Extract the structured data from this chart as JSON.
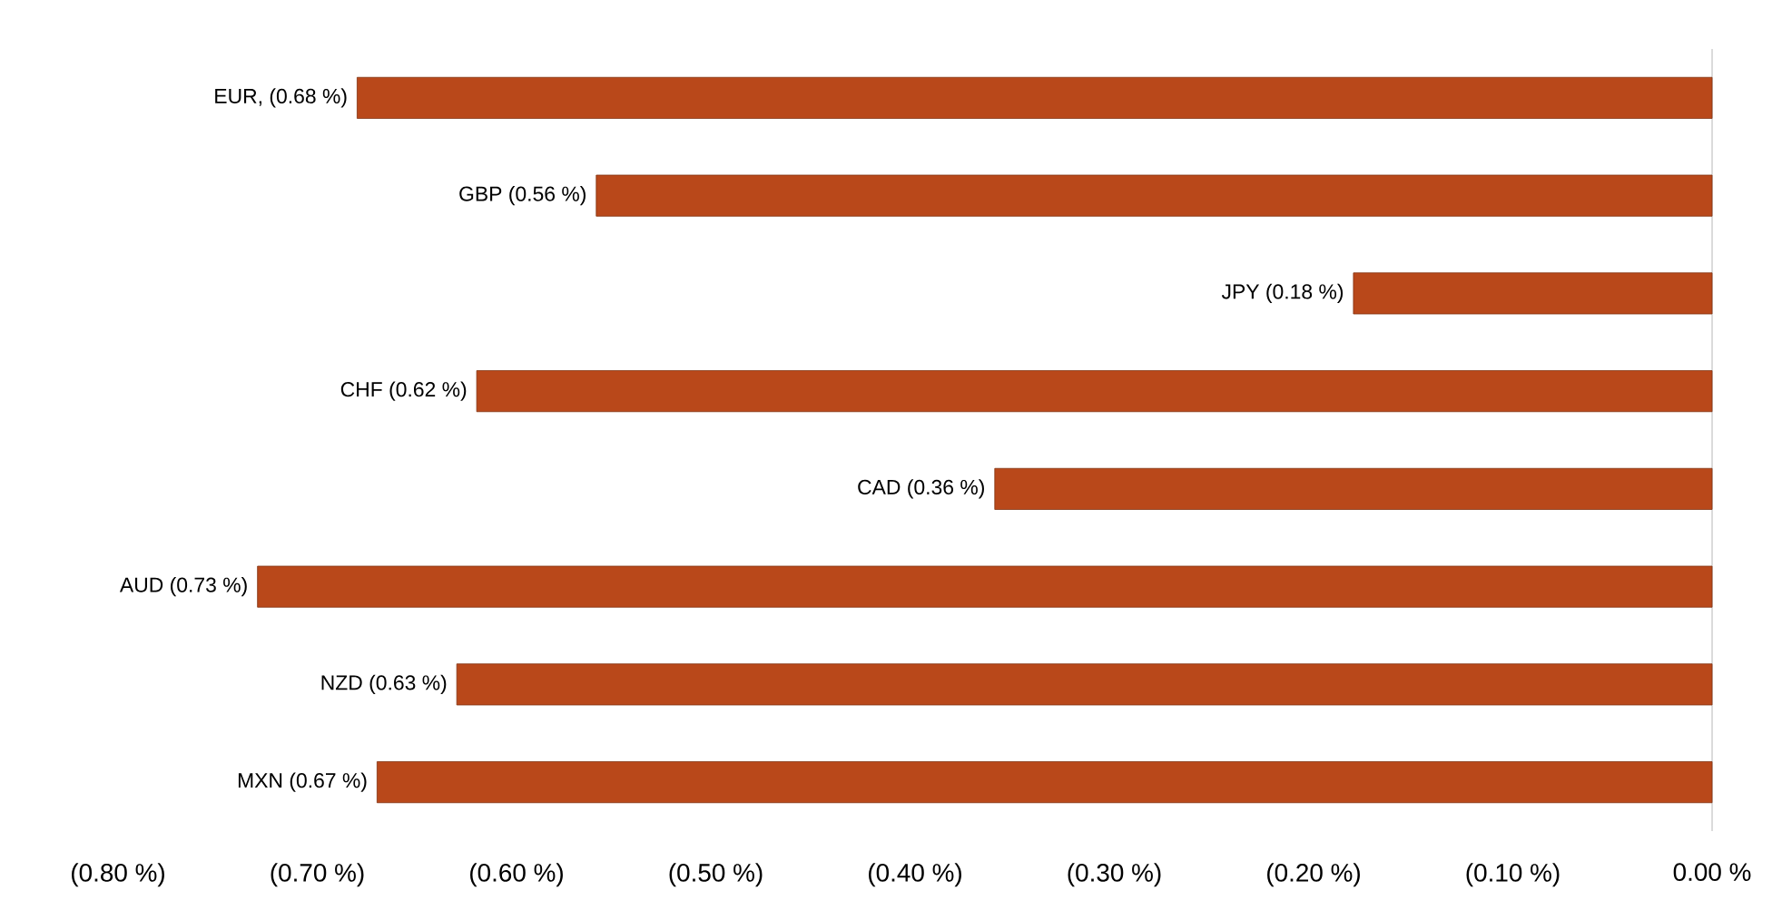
{
  "chart_data": {
    "type": "bar",
    "orientation": "horizontal",
    "categories": [
      "EUR, (0.68 %)",
      "GBP (0.56 %)",
      "JPY (0.18 %)",
      "CHF (0.62 %)",
      "CAD (0.36 %)",
      "AUD (0.73 %)",
      "NZD (0.63 %)",
      "MXN (0.67 %)"
    ],
    "values": [
      -0.68,
      -0.56,
      -0.18,
      -0.62,
      -0.36,
      -0.73,
      -0.63,
      -0.67
    ],
    "color": "#b9481a",
    "xlim": [
      -0.8,
      0
    ],
    "xticks": [
      {
        "value": -0.8,
        "label": "(0.80 %)"
      },
      {
        "value": -0.7,
        "label": "(0.70 %)"
      },
      {
        "value": -0.6,
        "label": "(0.60 %)"
      },
      {
        "value": -0.5,
        "label": "(0.50 %)"
      },
      {
        "value": -0.4,
        "label": "(0.40 %)"
      },
      {
        "value": -0.3,
        "label": "(0.30 %)"
      },
      {
        "value": -0.2,
        "label": "(0.20 %)"
      },
      {
        "value": -0.1,
        "label": "(0.10 %)"
      },
      {
        "value": 0,
        "label": "0.00 %"
      }
    ],
    "grid": false
  }
}
